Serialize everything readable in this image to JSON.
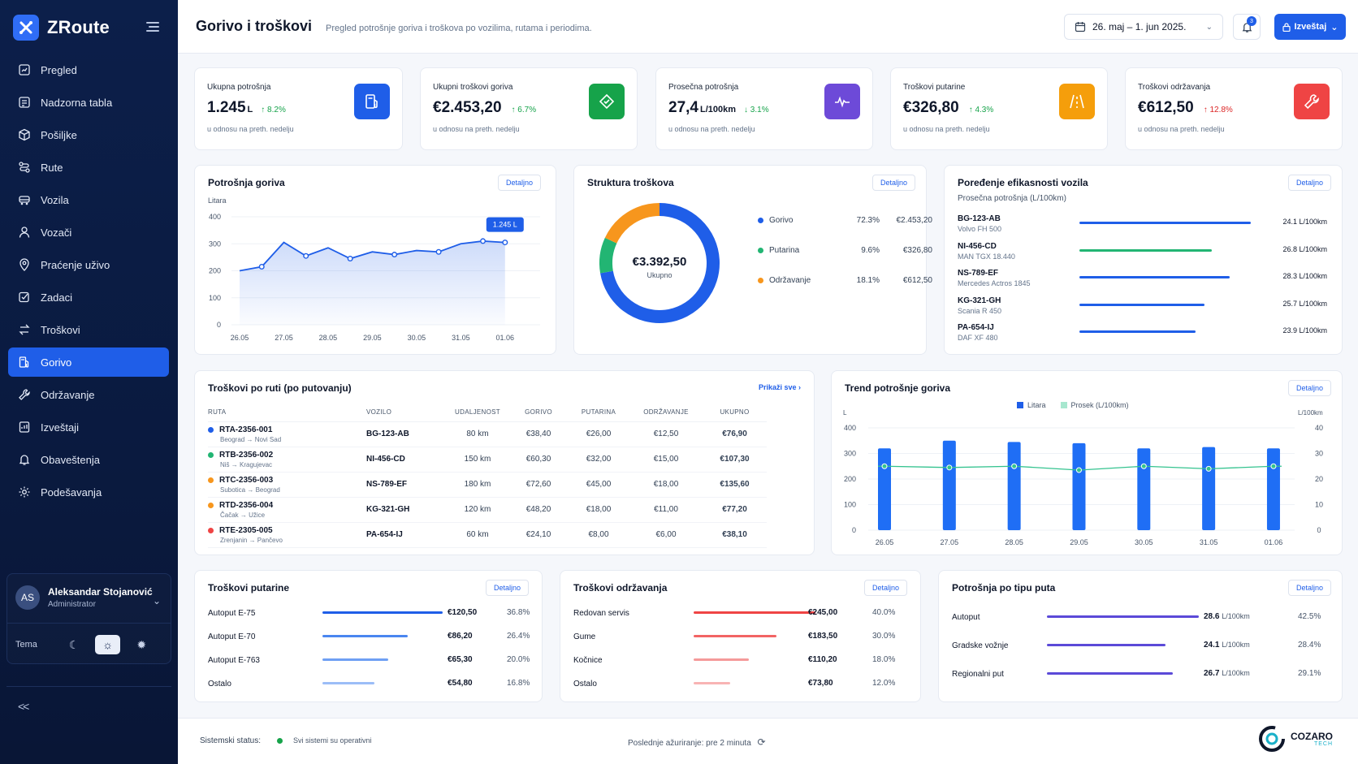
{
  "app": {
    "name": "ZRoute"
  },
  "sidebar": {
    "items": [
      {
        "label": "Pregled",
        "icon": "dashboard-icon"
      },
      {
        "label": "Nadzorna tabla",
        "icon": "panel-icon"
      },
      {
        "label": "Pošiljke",
        "icon": "package-icon"
      },
      {
        "label": "Rute",
        "icon": "route-icon"
      },
      {
        "label": "Vozila",
        "icon": "truck-icon"
      },
      {
        "label": "Vozači",
        "icon": "user-icon"
      },
      {
        "label": "Praćenje uživo",
        "icon": "location-icon"
      },
      {
        "label": "Zadaci",
        "icon": "task-icon"
      },
      {
        "label": "Troškovi",
        "icon": "exchange-icon"
      },
      {
        "label": "Gorivo",
        "icon": "fuel-icon",
        "active": true
      },
      {
        "label": "Održavanje",
        "icon": "wrench-icon"
      },
      {
        "label": "Izveštaji",
        "icon": "report-icon"
      },
      {
        "label": "Obaveštenja",
        "icon": "bell-icon"
      },
      {
        "label": "Podešavanja",
        "icon": "gear-icon"
      }
    ]
  },
  "user": {
    "initials": "AS",
    "name": "Aleksandar Stojanović",
    "role": "Administrator"
  },
  "theme": {
    "label": "Tema"
  },
  "header": {
    "title": "Gorivo i troškovi",
    "subtitle": "Pregled potrošnje goriva i troškova po vozilima, rutama i periodima.",
    "date_range": "26. maj – 1. jun 2025.",
    "notifications": "3",
    "report_label": "Izveštaj"
  },
  "kpis": [
    {
      "label": "Ukupna potrošnja",
      "value": "1.245",
      "unit": "L",
      "delta": "↑ 8.2%",
      "sub": "u odnosu na preth. nedelju",
      "color": "#1f5ee8"
    },
    {
      "label": "Ukupni troškovi goriva",
      "value": "€2.453,20",
      "unit": "",
      "delta": "↑ 6.7%",
      "sub": "u odnosu na preth. nedelju",
      "color": "#16a34a"
    },
    {
      "label": "Prosečna potrošnja",
      "value": "27,4",
      "unit": "L/100km",
      "delta": "↓ 3.1%",
      "sub": "u odnosu na preth. nedelju",
      "color": "#6d4ad8"
    },
    {
      "label": "Troškovi putarine",
      "value": "€326,80",
      "unit": "",
      "delta": "↑ 4.3%",
      "sub": "u odnosu na preth. nedelju",
      "color": "#f59e0b"
    },
    {
      "label": "Troškovi održavanja",
      "value": "€612,50",
      "unit": "",
      "delta": "↑ 12.8%",
      "sub": "u odnosu na preth. nedelju",
      "color": "#ef4444"
    }
  ],
  "common": {
    "detail": "Detaljno",
    "show_all": "Prikaži sve"
  },
  "fuel_chart": {
    "title": "Potrošnja goriva",
    "ylabel": "Litara",
    "tooltip": "1.245 L"
  },
  "cost_structure": {
    "title": "Struktura troškova",
    "total": "€3.392,50",
    "total_label": "Ukupno",
    "items": [
      {
        "name": "Gorivo",
        "pct": "72.3%",
        "value": "€2.453,20",
        "share": 72.3,
        "color": "#1f5ee8"
      },
      {
        "name": "Putarina",
        "pct": "9.6%",
        "value": "€326,80",
        "share": 9.6,
        "color": "#22b573"
      },
      {
        "name": "Održavanje",
        "pct": "18.1%",
        "value": "€612,50",
        "share": 18.1,
        "color": "#f7961d"
      }
    ]
  },
  "efficiency": {
    "title": "Poređenje efikasnosti vozila",
    "subtitle": "Prosečna potrošnja (L/100km)",
    "items": [
      {
        "plate": "BG-123-AB",
        "model": "Volvo FH 500",
        "value": "24.1 L/100km",
        "fill": 0.96,
        "color": "#1f5ee8"
      },
      {
        "plate": "NI-456-CD",
        "model": "MAN TGX 18.440",
        "value": "26.8 L/100km",
        "fill": 0.74,
        "color": "#22b573"
      },
      {
        "plate": "NS-789-EF",
        "model": "Mercedes Actros 1845",
        "value": "28.3 L/100km",
        "fill": 0.84,
        "color": "#1f5ee8"
      },
      {
        "plate": "KG-321-GH",
        "model": "Scania R 450",
        "value": "25.7 L/100km",
        "fill": 0.7,
        "color": "#1f5ee8"
      },
      {
        "plate": "PA-654-IJ",
        "model": "DAF XF 480",
        "value": "23.9 L/100km",
        "fill": 0.65,
        "color": "#1f5ee8"
      }
    ]
  },
  "routes": {
    "title": "Troškovi po ruti (po putovanju)",
    "columns": [
      "RUTA",
      "VOZILO",
      "UDALJENOST",
      "GORIVO",
      "PUTARINA",
      "ODRŽAVANJE",
      "UKUPNO"
    ],
    "rows": [
      {
        "id": "RTA-2356-001",
        "path": "Beograd → Novi Sad",
        "vehicle": "BG-123-AB",
        "distance": "80 km",
        "fuel": "€38,40",
        "toll": "€26,00",
        "maint": "€12,50",
        "total": "€76,90",
        "color": "#1f5ee8"
      },
      {
        "id": "RTB-2356-002",
        "path": "Niš → Kragujevac",
        "vehicle": "NI-456-CD",
        "distance": "150 km",
        "fuel": "€60,30",
        "toll": "€32,00",
        "maint": "€15,00",
        "total": "€107,30",
        "color": "#22b573"
      },
      {
        "id": "RTC-2356-003",
        "path": "Subotica → Beograd",
        "vehicle": "NS-789-EF",
        "distance": "180 km",
        "fuel": "€72,60",
        "toll": "€45,00",
        "maint": "€18,00",
        "total": "€135,60",
        "color": "#f7961d"
      },
      {
        "id": "RTD-2356-004",
        "path": "Čačak → Užice",
        "vehicle": "KG-321-GH",
        "distance": "120 km",
        "fuel": "€48,20",
        "toll": "€18,00",
        "maint": "€11,00",
        "total": "€77,20",
        "color": "#f7961d"
      },
      {
        "id": "RTE-2305-005",
        "path": "Zrenjanin → Pančevo",
        "vehicle": "PA-654-IJ",
        "distance": "60 km",
        "fuel": "€24,10",
        "toll": "€8,00",
        "maint": "€6,00",
        "total": "€38,10",
        "color": "#ef4444"
      }
    ]
  },
  "trend": {
    "title": "Trend potrošnje goriva",
    "legend_bar": "Litara",
    "legend_line": "Prosek (L/100km)",
    "left_unit": "L",
    "right_unit": "L/100km"
  },
  "tolls": {
    "title": "Troškovi putarine",
    "items": [
      {
        "label": "Autoput E-75",
        "value": "€120,50",
        "pct": "36.8%",
        "fill": 1.0,
        "color": "#1f5ee8"
      },
      {
        "label": "Autoput E-70",
        "value": "€86,20",
        "pct": "26.4%",
        "fill": 0.71,
        "color": "#4a86f0"
      },
      {
        "label": "Autoput E-763",
        "value": "€65,30",
        "pct": "20.0%",
        "fill": 0.55,
        "color": "#6fa0f4"
      },
      {
        "label": "Ostalo",
        "value": "€54,80",
        "pct": "16.8%",
        "fill": 0.43,
        "color": "#9bbdf7"
      }
    ]
  },
  "maintenance": {
    "title": "Troškovi održavanja",
    "items": [
      {
        "label": "Redovan servis",
        "value": "€245,00",
        "pct": "40.0%",
        "fill": 1.0,
        "color": "#ef4444"
      },
      {
        "label": "Gume",
        "value": "€183,50",
        "pct": "30.0%",
        "fill": 0.68,
        "color": "#f26464"
      },
      {
        "label": "Kočnice",
        "value": "€110,20",
        "pct": "18.0%",
        "fill": 0.45,
        "color": "#f59a9a"
      },
      {
        "label": "Ostalo",
        "value": "€73,80",
        "pct": "12.0%",
        "fill": 0.3,
        "color": "#f8b4b4"
      }
    ]
  },
  "road_type": {
    "title": "Potrošnja po tipu puta",
    "items": [
      {
        "label": "Autoput",
        "value": "28.6",
        "unit": "L/100km",
        "pct": "42.5%",
        "fill": 1.0,
        "color": "#5b4ad8"
      },
      {
        "label": "Gradske vožnje",
        "value": "24.1",
        "unit": "L/100km",
        "pct": "28.4%",
        "fill": 0.78,
        "color": "#5b4ad8"
      },
      {
        "label": "Regionalni put",
        "value": "26.7",
        "unit": "L/100km",
        "pct": "29.1%",
        "fill": 0.83,
        "color": "#5b4ad8"
      }
    ]
  },
  "footer": {
    "status_label": "Sistemski status:",
    "status_text": "Svi sistemi su operativni",
    "update_text": "Poslednje ažuriranje: pre 2 minuta",
    "brand_name": "COZARO",
    "brand_tag": "TECH"
  },
  "chart_data": [
    {
      "type": "area",
      "title": "Potrošnja goriva",
      "ylabel": "Litara",
      "categories": [
        "26.05",
        "27.05",
        "28.05",
        "29.05",
        "30.05",
        "31.05",
        "01.06"
      ],
      "x": [
        0,
        0.5,
        1,
        1.5,
        2,
        2.5,
        3,
        3.5,
        4,
        4.5,
        5,
        5.5,
        6
      ],
      "values": [
        200,
        215,
        305,
        255,
        285,
        245,
        270,
        260,
        275,
        270,
        300,
        310,
        305
      ],
      "ylim": [
        0,
        400
      ],
      "yticks": [
        0,
        100,
        200,
        300,
        400
      ],
      "annotation": "1.245 L",
      "color": "#1f5ee8"
    },
    {
      "type": "pie",
      "title": "Struktura troškova",
      "categories": [
        "Gorivo",
        "Putarina",
        "Održavanje"
      ],
      "values": [
        72.3,
        9.6,
        18.1
      ]
    },
    {
      "type": "bar",
      "title": "Trend potrošnje goriva",
      "categories": [
        "26.05",
        "27.05",
        "28.05",
        "29.05",
        "30.05",
        "31.05",
        "01.06"
      ],
      "series": [
        {
          "name": "Litara",
          "type": "bar",
          "values": [
            320,
            350,
            345,
            340,
            320,
            325,
            320
          ]
        },
        {
          "name": "Prosek (L/100km)",
          "type": "line",
          "axis": "right",
          "values": [
            25,
            24.5,
            25,
            23.5,
            25,
            24,
            25
          ]
        }
      ],
      "ylim": [
        0,
        400
      ],
      "y2lim": [
        0,
        40
      ],
      "yticks": [
        0,
        100,
        200,
        300,
        400
      ],
      "y2ticks": [
        0,
        10,
        20,
        30,
        40
      ]
    }
  ]
}
